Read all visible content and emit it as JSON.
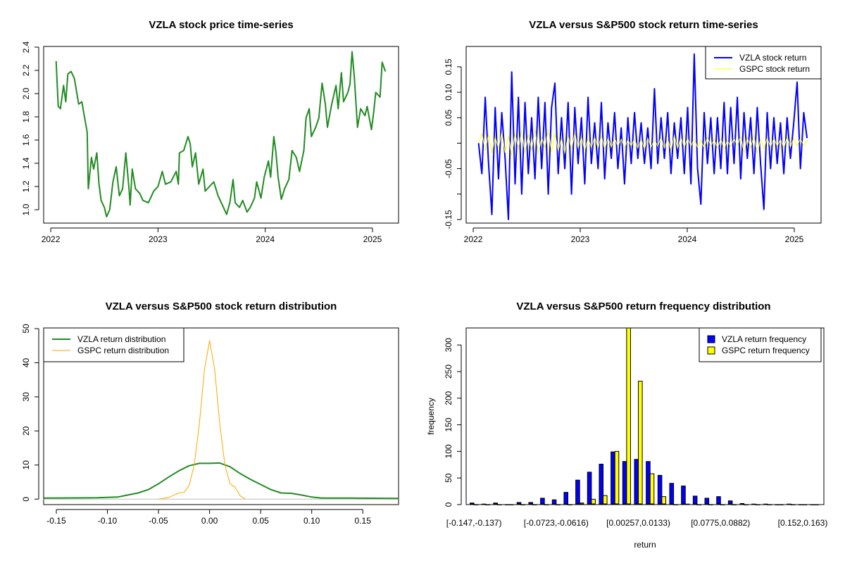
{
  "chart_data": [
    {
      "type": "line",
      "title": "VZLA stock price time-series",
      "xlabel": "",
      "ylabel": "",
      "xlim": [
        2021.934,
        2025.243
      ],
      "ylim": [
        0.885,
        2.406
      ],
      "xticks": [
        2022,
        2023,
        2024,
        2025
      ],
      "xtick_labels": [
        "2022",
        "2023",
        "2024",
        "2025"
      ],
      "yticks": [
        1.0,
        1.2,
        1.4,
        1.6,
        1.8,
        2.0,
        2.2,
        2.4
      ],
      "ytick_labels": [
        "1.0",
        "1.2",
        "1.4",
        "1.6",
        "1.8",
        "2.0",
        "2.2",
        "2.4"
      ],
      "series": [
        {
          "name": "VZLA price",
          "color": "#228B22",
          "x": [
            2022.05,
            2022.07,
            2022.09,
            2022.12,
            2022.14,
            2022.16,
            2022.19,
            2022.22,
            2022.26,
            2022.29,
            2022.32,
            2022.34,
            2022.35,
            2022.38,
            2022.4,
            2022.43,
            2022.45,
            2022.47,
            2022.5,
            2022.52,
            2022.55,
            2022.58,
            2022.61,
            2022.64,
            2022.67,
            2022.7,
            2022.73,
            2022.74,
            2022.76,
            2022.79,
            2022.83,
            2022.86,
            2022.91,
            2022.96,
            2023.0,
            2023.04,
            2023.07,
            2023.12,
            2023.17,
            2023.19,
            2023.2,
            2023.24,
            2023.28,
            2023.3,
            2023.32,
            2023.35,
            2023.38,
            2023.42,
            2023.44,
            2023.48,
            2023.52,
            2023.56,
            2023.61,
            2023.64,
            2023.67,
            2023.7,
            2023.72,
            2023.76,
            2023.79,
            2023.83,
            2023.86,
            2023.9,
            2023.92,
            2023.96,
            2023.99,
            2024.03,
            2024.05,
            2024.08,
            2024.1,
            2024.12,
            2024.15,
            2024.18,
            2024.22,
            2024.25,
            2024.29,
            2024.32,
            2024.36,
            2024.38,
            2024.41,
            2024.43,
            2024.47,
            2024.5,
            2024.53,
            2024.56,
            2024.58,
            2024.62,
            2024.66,
            2024.68,
            2024.71,
            2024.73,
            2024.77,
            2024.79,
            2024.81,
            2024.83,
            2024.86,
            2024.89,
            2024.93,
            2024.95,
            2024.99,
            2025.01,
            2025.03,
            2025.07,
            2025.09,
            2025.12
          ],
          "y": [
            2.28,
            1.89,
            1.87,
            2.07,
            1.93,
            2.17,
            2.19,
            2.13,
            1.91,
            1.93,
            1.77,
            1.67,
            1.18,
            1.45,
            1.35,
            1.49,
            1.22,
            1.08,
            1.02,
            0.94,
            1.0,
            1.24,
            1.37,
            1.12,
            1.18,
            1.49,
            1.18,
            1.04,
            1.35,
            1.18,
            1.14,
            1.08,
            1.06,
            1.16,
            1.2,
            1.33,
            1.22,
            1.24,
            1.33,
            1.22,
            1.49,
            1.51,
            1.63,
            1.57,
            1.37,
            1.49,
            1.22,
            1.35,
            1.16,
            1.2,
            1.24,
            1.12,
            1.02,
            0.96,
            1.06,
            1.26,
            1.06,
            1.02,
            1.08,
            0.98,
            1.02,
            1.1,
            1.24,
            1.1,
            1.28,
            1.42,
            1.28,
            1.63,
            1.49,
            1.28,
            1.09,
            1.18,
            1.26,
            1.51,
            1.45,
            1.33,
            1.51,
            1.79,
            1.87,
            1.63,
            1.71,
            1.79,
            2.09,
            1.91,
            1.71,
            1.91,
            2.07,
            1.87,
            2.18,
            1.93,
            2.01,
            2.08,
            2.36,
            2.15,
            1.71,
            1.87,
            1.81,
            1.89,
            1.69,
            1.83,
            2.01,
            1.97,
            2.27,
            2.19
          ]
        }
      ]
    },
    {
      "type": "line",
      "title": "VZLA versus S&P500 stock return time-series",
      "xlabel": "",
      "ylabel": "",
      "xlim": [
        2021.934,
        2025.25
      ],
      "ylim": [
        -0.157,
        0.19
      ],
      "xticks": [
        2022,
        2023,
        2024,
        2025
      ],
      "xtick_labels": [
        "2022",
        "2023",
        "2024",
        "2025"
      ],
      "yticks": [
        -0.15,
        -0.1,
        -0.05,
        0.0,
        0.05,
        0.1,
        0.15
      ],
      "ytick_labels": [
        "-0.15",
        "",
        "-0.05",
        "",
        "0.05",
        "0.10",
        "0.15"
      ],
      "legend": {
        "position": "top-right",
        "entries": [
          "VZLA stock return",
          "GSPC stock return"
        ]
      },
      "x_start": 2022.05,
      "x_step": 0.031,
      "series": [
        {
          "name": "VZLA stock return",
          "color": "#0000FF",
          "values": [
            0.0,
            -0.06,
            0.09,
            -0.04,
            -0.14,
            0.07,
            -0.07,
            0.06,
            -0.03,
            -0.15,
            0.14,
            -0.08,
            0.09,
            -0.1,
            0.08,
            -0.06,
            0.05,
            -0.07,
            0.09,
            -0.05,
            0.08,
            -0.1,
            0.07,
            0.118,
            -0.06,
            0.05,
            -0.05,
            0.08,
            -0.1,
            0.07,
            -0.04,
            0.05,
            -0.08,
            0.09,
            -0.04,
            0.04,
            -0.05,
            0.08,
            -0.07,
            0.04,
            -0.03,
            0.06,
            -0.05,
            0.03,
            -0.08,
            0.05,
            -0.04,
            0.06,
            -0.03,
            0.04,
            -0.04,
            0.03,
            -0.05,
            0.107,
            -0.04,
            0.05,
            -0.03,
            0.06,
            -0.06,
            0.04,
            -0.03,
            0.05,
            -0.06,
            0.07,
            -0.08,
            0.175,
            -0.05,
            -0.12,
            0.06,
            -0.04,
            0.05,
            -0.06,
            0.05,
            -0.05,
            0.08,
            -0.06,
            0.07,
            -0.04,
            0.09,
            -0.07,
            0.06,
            -0.03,
            0.05,
            -0.06,
            0.07,
            -0.04,
            -0.13,
            0.06,
            -0.05,
            0.05,
            -0.04,
            0.04,
            -0.06,
            0.05,
            -0.03,
            0.04,
            0.12,
            -0.05,
            0.06,
            0.01
          ]
        },
        {
          "name": "GSPC stock return",
          "color": "#FFFF00",
          "values": [
            0.0,
            0.02,
            -0.015,
            0.018,
            -0.02,
            0.012,
            -0.01,
            0.022,
            -0.018,
            0.015,
            -0.025,
            0.02,
            -0.012,
            0.025,
            -0.02,
            0.018,
            -0.015,
            0.03,
            -0.022,
            0.012,
            -0.01,
            0.028,
            -0.018,
            0.02,
            -0.015,
            0.01,
            -0.02,
            0.015,
            -0.012,
            0.02,
            -0.01,
            0.012,
            -0.015,
            0.01,
            -0.008,
            0.012,
            -0.01,
            0.015,
            -0.012,
            0.01,
            -0.008,
            0.01,
            -0.006,
            0.008,
            -0.01,
            0.007,
            -0.006,
            0.009,
            -0.01,
            0.008,
            -0.012,
            0.01,
            -0.008,
            0.007,
            -0.006,
            0.012,
            -0.01,
            0.008,
            -0.014,
            0.015,
            -0.01,
            0.012,
            -0.008,
            0.01,
            -0.006,
            0.009,
            -0.008,
            0.007,
            -0.01,
            0.012,
            -0.006,
            0.008,
            -0.01,
            0.009,
            -0.012,
            0.006,
            -0.008,
            0.01,
            -0.006,
            0.015,
            -0.02,
            0.012,
            -0.01,
            0.015,
            -0.02,
            0.008,
            -0.012,
            0.01,
            -0.008,
            0.01,
            -0.006,
            0.008,
            -0.01,
            0.012,
            -0.008,
            0.01,
            -0.006,
            0.009,
            -0.005,
            0.006
          ]
        }
      ]
    },
    {
      "type": "line",
      "title": "VZLA versus S&P500 stock return distribution",
      "xlabel": "",
      "ylabel": "",
      "xlim": [
        -0.1624,
        0.185
      ],
      "ylim": [
        -1.6,
        50.2
      ],
      "xticks": [
        -0.15,
        -0.1,
        -0.05,
        0.0,
        0.05,
        0.1,
        0.15
      ],
      "xtick_labels": [
        "-0.15",
        "-0.10",
        "-0.05",
        "0.00",
        "0.05",
        "0.10",
        "0.15"
      ],
      "yticks": [
        0,
        10,
        20,
        30,
        40,
        50
      ],
      "ytick_labels": [
        "0",
        "10",
        "20",
        "30",
        "40",
        "50"
      ],
      "legend": {
        "position": "top-left",
        "entries": [
          "VZLA return distribution",
          "GSPC return distribution"
        ]
      },
      "series": [
        {
          "name": "VZLA return distribution",
          "color": "#228B22",
          "x": [
            -0.162,
            -0.11,
            -0.09,
            -0.08,
            -0.07,
            -0.06,
            -0.05,
            -0.04,
            -0.03,
            -0.02,
            -0.01,
            0.0,
            0.01,
            0.02,
            0.03,
            0.04,
            0.05,
            0.06,
            0.07,
            0.08,
            0.09,
            0.1,
            0.11,
            0.14,
            0.185
          ],
          "y": [
            0.3,
            0.4,
            0.6,
            1.2,
            1.8,
            2.8,
            4.5,
            6.5,
            8.3,
            9.8,
            10.5,
            10.5,
            10.6,
            9.5,
            7.5,
            5.8,
            4.3,
            2.8,
            1.8,
            1.7,
            1.2,
            0.6,
            0.3,
            0.3,
            0.2
          ]
        },
        {
          "name": "GSPC return distribution",
          "color": "#FFA500",
          "x": [
            -0.05,
            -0.04,
            -0.03,
            -0.025,
            -0.02,
            -0.015,
            -0.01,
            -0.005,
            0.0,
            0.005,
            0.01,
            0.015,
            0.02,
            0.025,
            0.03,
            0.035
          ],
          "y": [
            0,
            0.5,
            1.8,
            2.0,
            4,
            10,
            22,
            38,
            46.5,
            38,
            22,
            10,
            4.5,
            3.5,
            1.0,
            0
          ]
        }
      ]
    },
    {
      "type": "bar",
      "title": "VZLA versus S&P500 return frequency distribution",
      "xlabel": "return",
      "ylabel": "frequency",
      "ylim": [
        0,
        332
      ],
      "yticks": [
        0,
        50,
        100,
        150,
        200,
        250,
        300
      ],
      "ytick_labels": [
        "0",
        "50",
        "100",
        "150",
        "200",
        "250",
        "300"
      ],
      "bin_count": 30,
      "category_labels_shown": [
        {
          "bin": 1,
          "label": "[-0.147,-0.137)"
        },
        {
          "bin": 8,
          "label": "[-0.0723,-0.0616)"
        },
        {
          "bin": 15,
          "label": "[0.00257,0.0133)"
        },
        {
          "bin": 22,
          "label": "[0.0775,0.0882)"
        },
        {
          "bin": 29,
          "label": "[0.152,0.163)"
        }
      ],
      "legend": {
        "position": "top-right",
        "entries": [
          "VZLA return frequency",
          "GSPC return frequency"
        ]
      },
      "series": [
        {
          "name": "VZLA return frequency",
          "color": "#0000FF",
          "values": [
            3,
            1,
            3,
            0,
            4,
            4,
            12,
            9,
            23,
            46,
            61,
            76,
            99,
            81,
            85,
            81,
            55,
            40,
            35,
            16,
            12,
            15,
            7,
            2,
            1,
            1,
            0,
            1,
            0,
            0
          ]
        },
        {
          "name": "GSPC return frequency",
          "color": "#FFFF00",
          "values": [
            0,
            0,
            0,
            0,
            0,
            0,
            0,
            0,
            0,
            3,
            10,
            17,
            100,
            340,
            232,
            58,
            15,
            0,
            1,
            0,
            0,
            0,
            0,
            0,
            0,
            0,
            0,
            0,
            0,
            0
          ]
        }
      ]
    }
  ]
}
